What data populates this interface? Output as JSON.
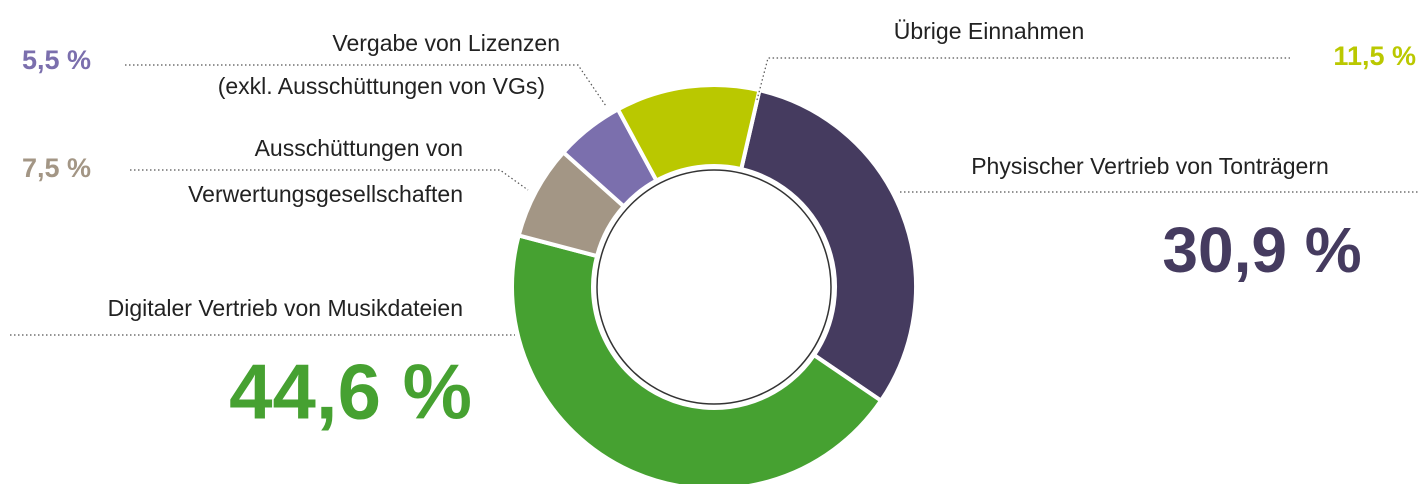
{
  "chart_data": {
    "type": "donut",
    "categories": [
      [
        "Physischer Vertrieb von Tonträgern"
      ],
      [
        "Digitaler Vertrieb von Musikdateien"
      ],
      [
        "Ausschüttungen von",
        "Verwertungsgesellschaften"
      ],
      [
        "Vergabe von Lizenzen",
        "(exkl. Ausschüttungen von VGs)"
      ],
      [
        "Übrige Einnahmen"
      ]
    ],
    "values": [
      30.9,
      44.6,
      7.5,
      5.5,
      11.5
    ],
    "value_labels": [
      "30,9 %",
      "44,6 %",
      "7,5 %",
      "5,5 %",
      "11,5 %"
    ],
    "colors": [
      "#453b5f",
      "#46a131",
      "#a39685",
      "#7b6fad",
      "#bac800"
    ]
  }
}
